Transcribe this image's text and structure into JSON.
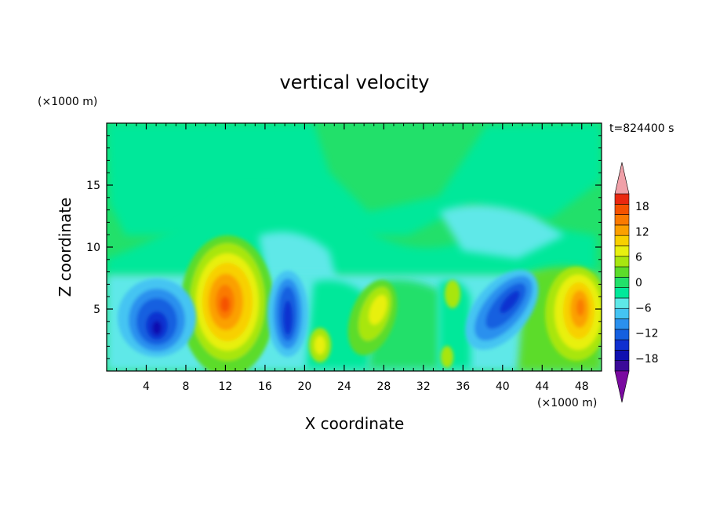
{
  "chart_data": {
    "type": "heatmap",
    "title": "vertical velocity",
    "xlabel": "X coordinate",
    "ylabel": "Z coordinate",
    "x_unit": "(×1000 m)",
    "y_unit": "(×1000 m)",
    "time_label": "t=824400 s",
    "xlim": [
      0,
      50
    ],
    "ylim": [
      0,
      20
    ],
    "x_ticks": [
      "4",
      "8",
      "12",
      "16",
      "20",
      "24",
      "28",
      "32",
      "36",
      "40",
      "44",
      "48"
    ],
    "y_ticks": [
      "5",
      "10",
      "15"
    ],
    "colorbar": {
      "min": -21,
      "max": 21,
      "step": 3,
      "tick_labels": [
        "18",
        "12",
        "6",
        "0",
        "−6",
        "−12",
        "−18"
      ],
      "tick_values": [
        18,
        12,
        6,
        0,
        -6,
        -12,
        -18
      ],
      "colors": [
        "#7a0aa0",
        "#3b0a99",
        "#1010b0",
        "#1030d0",
        "#1560e0",
        "#2a90ee",
        "#44c4f2",
        "#5ee8e8",
        "#00e89a",
        "#22e06a",
        "#5cdc2a",
        "#a8e610",
        "#e8f010",
        "#f8d000",
        "#fba000",
        "#fa7a00",
        "#f55200",
        "#ea2810",
        "#f0a0a8"
      ]
    },
    "cells": [
      {
        "x": 5,
        "z": 3.5,
        "value": -15
      },
      {
        "x": 12,
        "z": 5.5,
        "value": 15
      },
      {
        "x": 18,
        "z": 4,
        "value": -12
      },
      {
        "x": 27,
        "z": 4.5,
        "value": 6
      },
      {
        "x": 40,
        "z": 5,
        "value": -12
      },
      {
        "x": 47.5,
        "z": 5,
        "value": 12
      }
    ]
  }
}
